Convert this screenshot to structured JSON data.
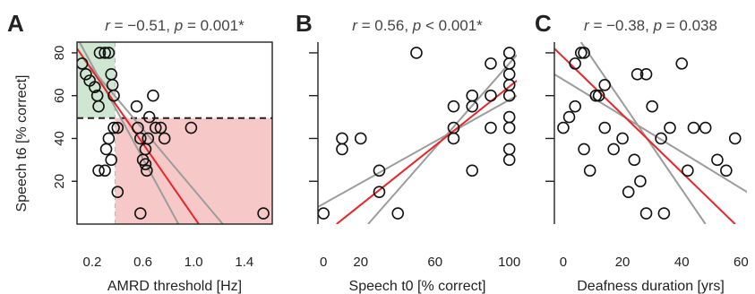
{
  "figure": {
    "shared_ylabel": "Speech t6 [% correct]"
  },
  "colors": {
    "regression_line": "#e8262b",
    "ci_lines": "#9c9c9c",
    "green_region": "#cfe6d2",
    "red_region": "#f6c9c8",
    "points": "#111111"
  },
  "chart_data": [
    {
      "panel_label": "A",
      "type": "scatter",
      "title": "r = −0.51, p = 0.001*",
      "title_parts": {
        "r": "r",
        "r_val": " = −0.51, ",
        "p": "p",
        "p_val": " = 0.001*"
      },
      "xlabel": "AMRD threshold [Hz]",
      "ylabel": "Speech t6 [% correct]",
      "xlim": [
        0.08,
        1.62
      ],
      "ylim": [
        0,
        85
      ],
      "xticks": [
        0.2,
        0.6,
        1.0,
        1.4
      ],
      "xtick_labels": [
        "0.2",
        "0.6",
        "1.0",
        "1.4"
      ],
      "yticks": [
        20,
        40,
        60,
        80
      ],
      "ytick_labels": [
        "20",
        "40",
        "60",
        "80"
      ],
      "threshold_x": 0.38,
      "threshold_y": 49.5,
      "regions": [
        {
          "name": "green",
          "x": [
            0.08,
            0.38
          ],
          "y": [
            49.5,
            85
          ]
        },
        {
          "name": "red",
          "x": [
            0.38,
            1.62
          ],
          "y": [
            0,
            49.5
          ]
        }
      ],
      "points": [
        [
          0.12,
          75
        ],
        [
          0.15,
          70
        ],
        [
          0.18,
          67
        ],
        [
          0.22,
          64
        ],
        [
          0.24,
          60
        ],
        [
          0.25,
          55
        ],
        [
          0.26,
          80
        ],
        [
          0.3,
          80
        ],
        [
          0.33,
          80
        ],
        [
          0.35,
          70
        ],
        [
          0.36,
          65
        ],
        [
          0.37,
          60
        ],
        [
          0.25,
          25
        ],
        [
          0.3,
          25
        ],
        [
          0.31,
          35
        ],
        [
          0.33,
          40
        ],
        [
          0.35,
          30
        ],
        [
          0.37,
          45
        ],
        [
          0.4,
          45
        ],
        [
          0.4,
          15
        ],
        [
          0.55,
          55
        ],
        [
          0.56,
          45
        ],
        [
          0.58,
          40
        ],
        [
          0.6,
          30
        ],
        [
          0.62,
          35
        ],
        [
          0.62,
          28
        ],
        [
          0.63,
          25
        ],
        [
          0.64,
          40
        ],
        [
          0.65,
          50
        ],
        [
          0.68,
          60
        ],
        [
          0.7,
          45
        ],
        [
          0.74,
          45
        ],
        [
          0.77,
          40
        ],
        [
          0.98,
          45
        ],
        [
          0.58,
          5
        ],
        [
          1.55,
          5
        ]
      ],
      "fit": {
        "x": [
          0.08,
          1.04
        ],
        "y": [
          82,
          0
        ]
      },
      "ci": [
        {
          "x": [
            0.1,
            0.88
          ],
          "y": [
            85,
            0
          ]
        },
        {
          "x": [
            0.12,
            1.23
          ],
          "y": [
            78,
            0
          ]
        }
      ]
    },
    {
      "panel_label": "B",
      "type": "scatter",
      "title": "r = 0.56, p < 0.001*",
      "title_parts": {
        "r": "r",
        "r_val": " = 0.56, ",
        "p": "p",
        "p_val": " < 0.001*"
      },
      "xlabel": "Speech t0 [% correct]",
      "ylabel": "Speech t6 [% correct]",
      "xlim": [
        -3,
        104
      ],
      "ylim": [
        0,
        85
      ],
      "xticks": [
        0,
        20,
        60,
        100
      ],
      "xtick_labels": [
        "0",
        "20",
        "60",
        "100"
      ],
      "yticks": [
        20,
        40,
        60,
        80
      ],
      "ytick_labels": [],
      "points": [
        [
          0,
          5
        ],
        [
          10,
          40
        ],
        [
          10,
          35
        ],
        [
          20,
          40
        ],
        [
          30,
          25
        ],
        [
          30,
          15
        ],
        [
          40,
          5
        ],
        [
          50,
          80
        ],
        [
          70,
          45
        ],
        [
          70,
          40
        ],
        [
          70,
          55
        ],
        [
          80,
          60
        ],
        [
          80,
          55
        ],
        [
          80,
          25
        ],
        [
          90,
          45
        ],
        [
          90,
          60
        ],
        [
          90,
          75
        ],
        [
          100,
          80
        ],
        [
          100,
          75
        ],
        [
          100,
          70
        ],
        [
          100,
          65
        ],
        [
          100,
          60
        ],
        [
          100,
          50
        ],
        [
          100,
          45
        ],
        [
          100,
          35
        ],
        [
          100,
          30
        ]
      ],
      "fit": {
        "x": [
          7,
          104
        ],
        "y": [
          0,
          67
        ]
      },
      "ci": [
        {
          "x": [
            -3,
            104
          ],
          "y": [
            8,
            60
          ]
        },
        {
          "x": [
            24,
            104
          ],
          "y": [
            0,
            79
          ]
        }
      ]
    },
    {
      "panel_label": "C",
      "type": "scatter",
      "title": "r = −0.38, p = 0.038",
      "title_parts": {
        "r": "r",
        "r_val": " = −0.38, ",
        "p": "p",
        "p_val": " = 0.038"
      },
      "xlabel": "Deafness duration [yrs]",
      "ylabel": "Speech t6 [% correct]",
      "xlim": [
        -3,
        62
      ],
      "ylim": [
        0,
        85
      ],
      "xticks": [
        0,
        20,
        40,
        60
      ],
      "xtick_labels": [
        "0",
        "20",
        "40",
        "60"
      ],
      "yticks": [
        20,
        40,
        60,
        80
      ],
      "ytick_labels": [],
      "points": [
        [
          0,
          45
        ],
        [
          2,
          50
        ],
        [
          4,
          75
        ],
        [
          4,
          55
        ],
        [
          6,
          80
        ],
        [
          7,
          80
        ],
        [
          7,
          35
        ],
        [
          9,
          25
        ],
        [
          11,
          60
        ],
        [
          12,
          60
        ],
        [
          14,
          65
        ],
        [
          14,
          45
        ],
        [
          17,
          35
        ],
        [
          20,
          40
        ],
        [
          22,
          15
        ],
        [
          24,
          30
        ],
        [
          25,
          70
        ],
        [
          28,
          70
        ],
        [
          28,
          5
        ],
        [
          30,
          55
        ],
        [
          33,
          40
        ],
        [
          34,
          5
        ],
        [
          36,
          45
        ],
        [
          40,
          75
        ],
        [
          42,
          25
        ],
        [
          44,
          45
        ],
        [
          48,
          45
        ],
        [
          52,
          30
        ],
        [
          55,
          25
        ],
        [
          58,
          40
        ],
        [
          26,
          20
        ]
      ],
      "fit": {
        "x": [
          -3,
          58
        ],
        "y": [
          82,
          0
        ]
      },
      "ci": [
        {
          "x": [
            -3,
            62
          ],
          "y": [
            70,
            15
          ]
        },
        {
          "x": [
            6,
            48
          ],
          "y": [
            85,
            0
          ]
        }
      ]
    }
  ]
}
